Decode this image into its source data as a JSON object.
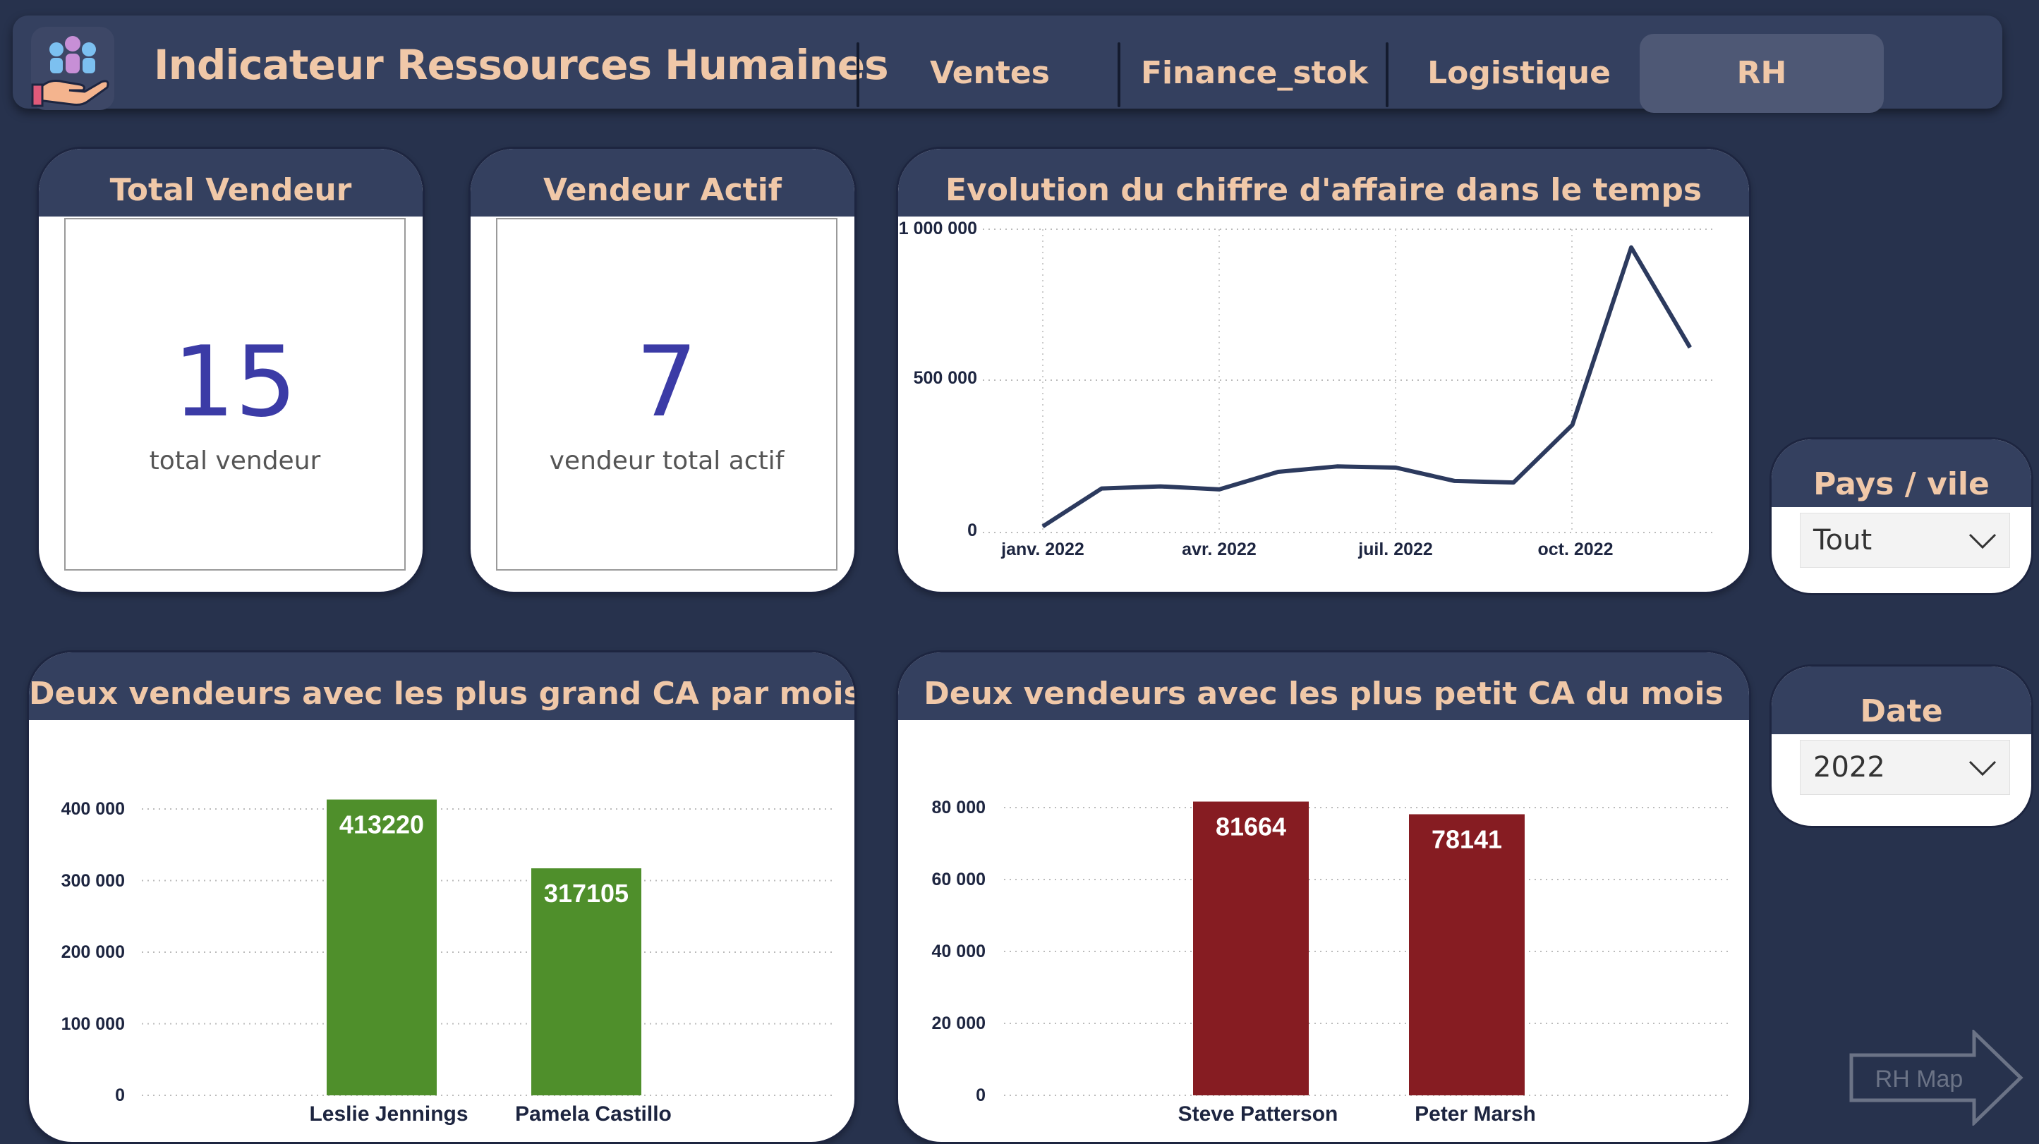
{
  "header": {
    "title": "Indicateur Ressources Humaines",
    "logo_icon": "hr-people-hand-icon",
    "tabs": [
      {
        "label": "Ventes",
        "active": false
      },
      {
        "label": "Finance_stok",
        "active": false
      },
      {
        "label": "Logistique",
        "active": false
      },
      {
        "label": "RH",
        "active": true
      }
    ]
  },
  "kpis": {
    "total_vendeur": {
      "title": "Total Vendeur",
      "value": "15",
      "label": "total vendeur"
    },
    "vendeur_actif": {
      "title": "Vendeur Actif",
      "value": "7",
      "label": "vendeur total actif"
    }
  },
  "evolution_chart": {
    "title": "Evolution du chiffre d'affaire dans le temps",
    "y_ticks": [
      "1 000 000",
      "500 000",
      "0"
    ],
    "x_ticks": [
      "janv. 2022",
      "avr. 2022",
      "juil. 2022",
      "oct. 2022"
    ]
  },
  "top_chart": {
    "title": "Deux vendeurs avec les plus grand CA par mois",
    "y_ticks": [
      "400 000",
      "300 000",
      "200 000",
      "100 000",
      "0"
    ]
  },
  "bottom_chart": {
    "title": "Deux vendeurs avec les plus petit CA du mois",
    "y_ticks": [
      "80 000",
      "60 000",
      "40 000",
      "20 000",
      "0"
    ]
  },
  "filters": {
    "pays": {
      "title": "Pays / vile",
      "value": "Tout"
    },
    "date": {
      "title": "Date",
      "value": "2022"
    }
  },
  "map_button": {
    "label": "RH Map"
  },
  "colors": {
    "background": "#27324d",
    "header_text": "#f0c8a8",
    "kpi_value": "#3b3ba6",
    "line": "#2c3a5e",
    "top_bar": "#4f8f2b",
    "bottom_bar": "#861c22"
  },
  "chart_data": [
    {
      "type": "line",
      "title": "Evolution du chiffre d'affaire dans le temps",
      "x": [
        "2022-01",
        "2022-02",
        "2022-03",
        "2022-04",
        "2022-05",
        "2022-06",
        "2022-07",
        "2022-08",
        "2022-09",
        "2022-10",
        "2022-11",
        "2022-12"
      ],
      "values": [
        20000,
        145000,
        152000,
        142000,
        200000,
        218000,
        214000,
        170000,
        165000,
        355000,
        940000,
        610000
      ],
      "ylim": [
        0,
        1000000
      ],
      "grid": true
    },
    {
      "type": "bar",
      "title": "Deux vendeurs avec les plus grand CA par mois",
      "categories": [
        "Leslie Jennings",
        "Pamela Castillo"
      ],
      "values": [
        413220,
        317105
      ],
      "ylim": [
        0,
        400000
      ],
      "grid": true
    },
    {
      "type": "bar",
      "title": "Deux vendeurs avec les plus petit CA du mois",
      "categories": [
        "Steve Patterson",
        "Peter Marsh"
      ],
      "values": [
        81664,
        78141
      ],
      "ylim": [
        0,
        80000
      ],
      "grid": true
    }
  ]
}
